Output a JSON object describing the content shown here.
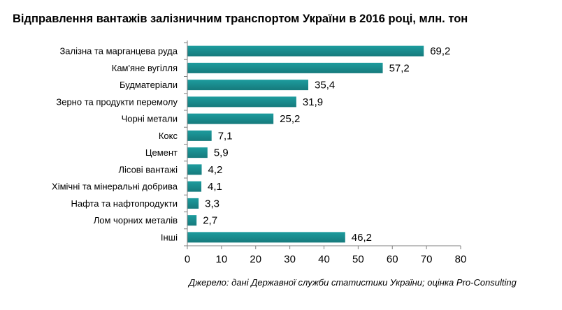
{
  "chart_data": {
    "type": "bar",
    "orientation": "horizontal",
    "title": "Відправлення вантажів залізничним транспортом України в 2016 році, млн. тон",
    "categories": [
      "Залізна та марганцева  руда",
      "Кам'яне вугілля",
      "Будматеріали",
      "Зерно та продукти перемолу",
      "Чорні метали",
      "Кокс",
      "Цемент",
      "Лісові вантажі",
      "Хімічні та мінеральні добрива",
      "Нафта  та нафтопродукти",
      "Лом чорних металів",
      "Інші"
    ],
    "values": [
      69.2,
      57.2,
      35.4,
      31.9,
      25.2,
      7.1,
      5.9,
      4.2,
      4.1,
      3.3,
      2.7,
      46.2
    ],
    "value_labels": [
      "69,2",
      "57,2",
      "35,4",
      "31,9",
      "25,2",
      "7,1",
      "5,9",
      "4,2",
      "4,1",
      "3,3",
      "2,7",
      "46,2"
    ],
    "xlim": [
      0,
      80
    ],
    "xticks": [
      0,
      10,
      20,
      30,
      40,
      50,
      60,
      70,
      80
    ],
    "xtick_labels": [
      "0",
      "10",
      "20",
      "30",
      "40",
      "50",
      "60",
      "70",
      "80"
    ],
    "xlabel": "",
    "ylabel": "",
    "grid": false,
    "legend": "none",
    "bar_color": "#1d9c9e",
    "bar_color_dark": "#167a7c",
    "axis_color": "#7f7f7f",
    "source": "Джерело: дані Державної служби статистики України; оцінка Pro-Consulting"
  }
}
